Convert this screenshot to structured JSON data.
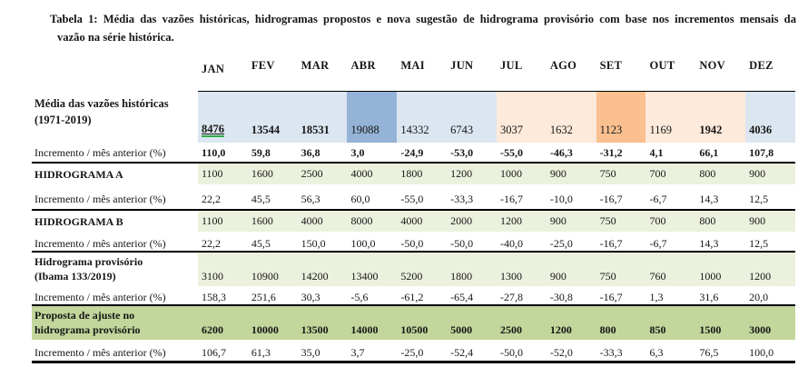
{
  "title": {
    "line1": "Tabela 1: Média das vazões históricas, hidrogramas propostos e nova sugestão de hidrograma provisório com base nos incrementos mensais da",
    "line2": "vazão na série histórica."
  },
  "months": [
    "JAN",
    "FEV",
    "MAR",
    "ABR",
    "MAI",
    "JUN",
    "JUL",
    "AGO",
    "SET",
    "OUT",
    "NOV",
    "DEZ"
  ],
  "colors": {
    "light_blue": "#dce6f1",
    "medium_blue": "#95b3d7",
    "light_orange": "#fdeada",
    "medium_orange": "#fac08f",
    "light_green": "#ebf1dd",
    "medium_green": "#c3d69b",
    "grammar_underline_green": "#30ab47",
    "border_black": "#000000"
  },
  "rows": [
    {
      "id": "media",
      "kind": "section",
      "label_lines": [
        "Média das vazões históricas",
        "(1971-2019)"
      ],
      "values": [
        "8476",
        "13544",
        "18531",
        "19088",
        "14332",
        "6743",
        "3037",
        "1632",
        "1123",
        "1169",
        "1942",
        "4036"
      ],
      "value_bold": [
        true,
        true,
        true,
        false,
        false,
        false,
        false,
        false,
        false,
        false,
        true,
        true
      ],
      "first_value_underlined": true,
      "cell_colors": [
        "light_blue",
        "light_blue",
        "light_blue",
        "medium_blue",
        "light_blue",
        "light_blue",
        "light_orange",
        "light_orange",
        "medium_orange",
        "light_orange",
        "light_orange",
        "light_blue"
      ]
    },
    {
      "id": "inc_media",
      "kind": "increment",
      "label": "Incremento / mês anterior (%)",
      "values": [
        "110,0",
        "59,8",
        "36,8",
        "3,0",
        "-24,9",
        "-53,0",
        "-55,0",
        "-46,3",
        "-31,2",
        "4,1",
        "66,1",
        "107,8"
      ],
      "values_bold": true
    },
    {
      "id": "hidrograma_a",
      "kind": "section",
      "label_lines": [
        "HIDROGRAMA A"
      ],
      "values": [
        "1100",
        "1600",
        "2500",
        "4000",
        "1800",
        "1200",
        "1000",
        "900",
        "750",
        "700",
        "800",
        "900"
      ],
      "cell_color_all": "light_green"
    },
    {
      "id": "inc_a",
      "kind": "increment",
      "label": "Incremento / mês anterior (%)",
      "values": [
        "22,2",
        "45,5",
        "56,3",
        "60,0",
        "-55,0",
        "-33,3",
        "-16,7",
        "-10,0",
        "-16,7",
        "-6,7",
        "14,3",
        "12,5"
      ]
    },
    {
      "id": "hidrograma_b",
      "kind": "section",
      "label_lines": [
        "HIDROGRAMA B"
      ],
      "values": [
        "1100",
        "1600",
        "4000",
        "8000",
        "4000",
        "2000",
        "1200",
        "900",
        "750",
        "700",
        "800",
        "900"
      ],
      "cell_color_all": "light_green"
    },
    {
      "id": "inc_b",
      "kind": "increment",
      "label": "Incremento / mês anterior (%)",
      "values": [
        "22,2",
        "45,5",
        "150,0",
        "100,0",
        "-50,0",
        "-50,0",
        "-40,0",
        "-25,0",
        "-16,7",
        "-6,7",
        "14,3",
        "12,5"
      ]
    },
    {
      "id": "provisorio",
      "kind": "section",
      "label_lines": [
        "Hidrograma provisório",
        "(Ibama 133/2019)"
      ],
      "values": [
        "3100",
        "10900",
        "14200",
        "13400",
        "5200",
        "1800",
        "1300",
        "900",
        "750",
        "760",
        "1000",
        "1200"
      ],
      "cell_color_all": "light_green"
    },
    {
      "id": "inc_provisorio",
      "kind": "increment",
      "label": "Incremento / mês anterior (%)",
      "values": [
        "158,3",
        "251,6",
        "30,3",
        "-5,6",
        "-61,2",
        "-65,4",
        "-27,8",
        "-30,8",
        "-16,7",
        "1,3",
        "31,6",
        "20,0"
      ]
    },
    {
      "id": "proposta",
      "kind": "section",
      "label_lines": [
        "Proposta de ajuste no",
        "hidrograma provisório"
      ],
      "values": [
        "6200",
        "10000",
        "13500",
        "14000",
        "10500",
        "5000",
        "2500",
        "1200",
        "800",
        "850",
        "1500",
        "3000"
      ],
      "cell_color_all": "medium_green",
      "label_has_background": true,
      "values_bold": true
    },
    {
      "id": "inc_proposta",
      "kind": "increment",
      "label": "Incremento / mês anterior (%)",
      "values": [
        "106,7",
        "61,3",
        "35,0",
        "3,7",
        "-25,0",
        "-52,4",
        "-50,0",
        "-52,0",
        "-33,3",
        "6,3",
        "76,5",
        "100,0"
      ]
    }
  ]
}
